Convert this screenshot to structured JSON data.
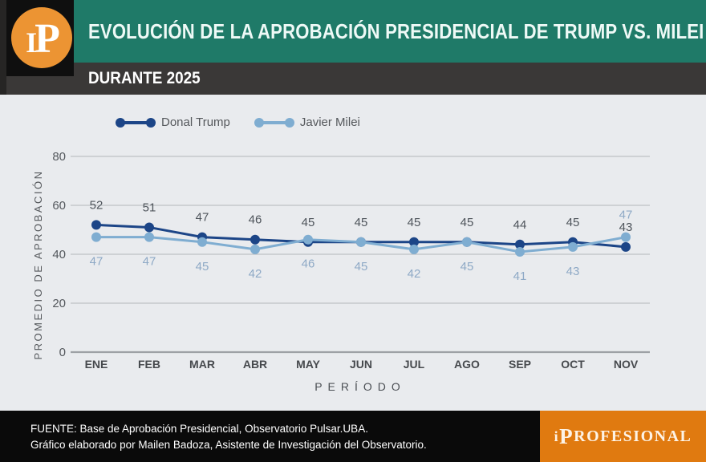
{
  "header": {
    "logo_parts": [
      "I",
      "P"
    ],
    "title": "EVOLUCIÓN DE LA APROBACIÓN PRESIDENCIAL DE TRUMP VS. MILEI",
    "subtitle": "DURANTE 2025"
  },
  "colors": {
    "page_bg": "#e9ebee",
    "teal_bar": "#1f7a68",
    "subtitle_bar": "#3a3837",
    "logo_orange": "#ec9433",
    "footer_bg": "#0a0a0a",
    "footer_orange": "#e07a10",
    "gridline": "#b3b7bb",
    "axis_line": "#9da1a5",
    "trump": "#1c4587",
    "milei": "#7fadd1"
  },
  "chart_data": {
    "type": "line",
    "categories": [
      "ENE",
      "FEB",
      "MAR",
      "ABR",
      "MAY",
      "JUN",
      "JUL",
      "AGO",
      "SEP",
      "OCT",
      "NOV"
    ],
    "series": [
      {
        "name": "Donal Trump",
        "color": "#1c4587",
        "label_color": "#4e545b",
        "values": [
          52,
          51,
          47,
          46,
          45,
          45,
          45,
          45,
          44,
          45,
          43
        ]
      },
      {
        "name": "Javier Milei",
        "color": "#7fadd1",
        "label_color": "#8ea9c6",
        "values": [
          47,
          47,
          45,
          42,
          46,
          45,
          42,
          45,
          41,
          43,
          47
        ]
      }
    ],
    "xlabel": "PERÍODO",
    "ylabel": "PROMEDIO DE APROBACIÓN",
    "yticks": [
      0,
      20,
      40,
      60,
      80
    ],
    "ylim": [
      0,
      88
    ],
    "grid": "horizontal",
    "legend_position": "top-left"
  },
  "footer": {
    "line1": "FUENTE: Base de Aprobación Presidencial, Observatorio Pulsar.UBA.",
    "line2": "Gráfico elaborado por Mailen Badoza, Asistente de Investigación del Observatorio.",
    "brand_parts": [
      "i",
      "P",
      "ROFESIONAL"
    ]
  }
}
